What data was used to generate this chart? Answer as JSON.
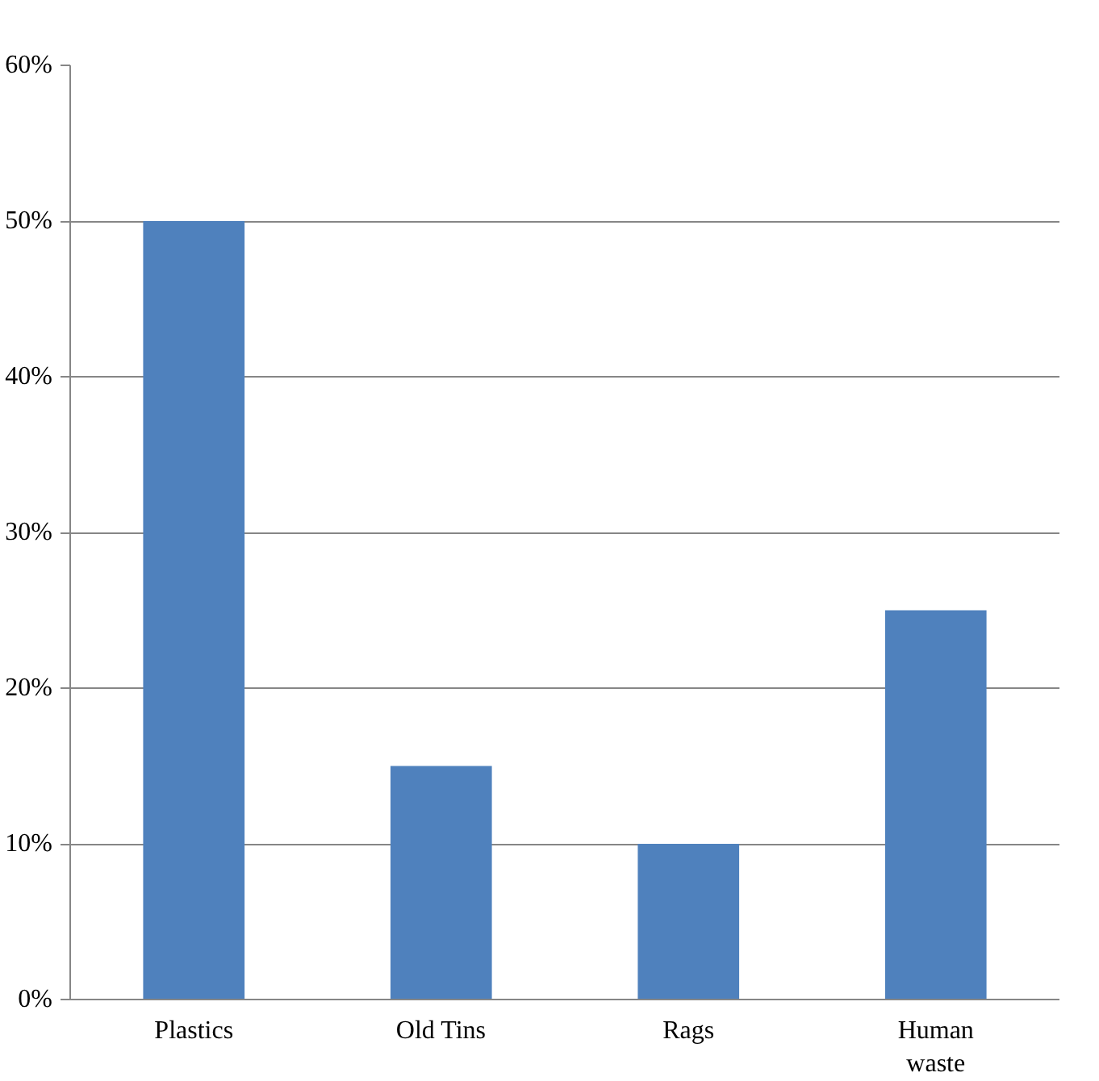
{
  "chart_data": {
    "type": "bar",
    "categories": [
      "Plastics",
      "Old Tins",
      "Rags",
      "Human waste"
    ],
    "values": [
      50,
      15,
      10,
      25
    ],
    "color": "#4f81bd",
    "ylim": [
      0,
      60
    ],
    "yticks": [
      {
        "value": 0,
        "label": "0%"
      },
      {
        "value": 10,
        "label": "10%"
      },
      {
        "value": 20,
        "label": "20%"
      },
      {
        "value": 30,
        "label": "30%"
      },
      {
        "value": 40,
        "label": "40%"
      },
      {
        "value": 50,
        "label": "50%"
      },
      {
        "value": 60,
        "label": "60%"
      }
    ],
    "grid": "y"
  }
}
